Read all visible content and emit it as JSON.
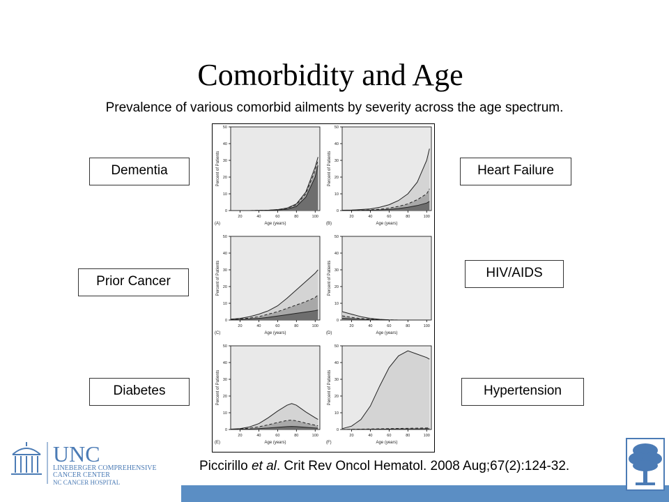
{
  "slide": {
    "title": "Comorbidity and Age",
    "subtitle": "Prevalence of various comorbid ailments by severity across the age spectrum.",
    "citation": {
      "author": "Piccirillo ",
      "etal": "et al",
      "rest": ". Crit Rev Oncol Hematol. 2008 Aug;67(2):124-32."
    }
  },
  "labels": {
    "dementia": "Dementia",
    "heart_failure": "Heart Failure",
    "prior_cancer": "Prior Cancer",
    "hiv_aids": "HIV/AIDS",
    "diabetes": "Diabetes",
    "hypertension": "Hypertension"
  },
  "logo": {
    "name": "UNC",
    "line1": "LINEBERGER COMPREHENSIVE",
    "line2": "CANCER CENTER",
    "line3": "NC CANCER HOSPITAL"
  },
  "colors": {
    "bottom_bar": "#5b8ec4",
    "unc_blue": "#4b7bb5",
    "fill_total": "#d4d4d4",
    "fill_moderate": "#a8a8a8",
    "fill_severe": "#6e6e6e",
    "panel_bg": "#e9e9e9"
  },
  "chart_data": [
    {
      "type": "area",
      "panel": "(A)",
      "xlabel": "Age (years)",
      "ylabel": "Percent of Patients",
      "xlim": [
        10,
        105
      ],
      "ylim": [
        0,
        50
      ],
      "x_ticks": [
        20,
        40,
        60,
        80,
        100
      ],
      "y_ticks": [
        0,
        10,
        20,
        30,
        40,
        50
      ],
      "x": [
        10,
        20,
        30,
        40,
        50,
        60,
        70,
        80,
        90,
        100,
        103
      ],
      "series": [
        {
          "values": [
            0,
            0,
            0,
            0.1,
            0.2,
            0.6,
            1.5,
            4,
            11,
            26,
            32
          ]
        },
        {
          "values": [
            0,
            0,
            0,
            0.1,
            0.2,
            0.5,
            1.3,
            3.5,
            10,
            24,
            30
          ]
        },
        {
          "values": [
            0,
            0,
            0,
            0,
            0.1,
            0.3,
            0.8,
            2.5,
            8,
            20,
            27
          ]
        }
      ]
    },
    {
      "type": "area",
      "panel": "(B)",
      "xlabel": "Age (years)",
      "ylabel": "Percent of Patients",
      "xlim": [
        10,
        105
      ],
      "ylim": [
        0,
        50
      ],
      "x_ticks": [
        20,
        40,
        60,
        80,
        100
      ],
      "y_ticks": [
        0,
        10,
        20,
        30,
        40,
        50
      ],
      "x": [
        10,
        20,
        30,
        40,
        50,
        60,
        70,
        80,
        90,
        100,
        103
      ],
      "series": [
        {
          "values": [
            0.2,
            0.3,
            0.6,
            1,
            2,
            3.5,
            6,
            10,
            17,
            30,
            37
          ]
        },
        {
          "values": [
            0,
            0.1,
            0.2,
            0.4,
            0.8,
            1.5,
            2.5,
            4,
            6.5,
            10,
            13
          ]
        },
        {
          "values": [
            0,
            0,
            0.1,
            0.2,
            0.4,
            0.7,
            1.2,
            2,
            3,
            4.5,
            5.5
          ]
        }
      ]
    },
    {
      "type": "area",
      "panel": "(C)",
      "xlabel": "Age (years)",
      "ylabel": "Percent of Patients",
      "xlim": [
        10,
        105
      ],
      "ylim": [
        0,
        50
      ],
      "x_ticks": [
        20,
        40,
        60,
        80,
        100
      ],
      "y_ticks": [
        0,
        10,
        20,
        30,
        40,
        50
      ],
      "x": [
        10,
        20,
        30,
        40,
        50,
        60,
        70,
        80,
        90,
        100,
        103
      ],
      "series": [
        {
          "values": [
            0.5,
            1,
            2,
            3.5,
            5.5,
            8.5,
            13,
            18,
            23,
            28,
            30
          ]
        },
        {
          "values": [
            0.3,
            0.6,
            1.2,
            2,
            3.5,
            5,
            7,
            9,
            11,
            13.5,
            15
          ]
        },
        {
          "values": [
            0.1,
            0.3,
            0.6,
            1,
            1.6,
            2.4,
            3.2,
            4,
            4.8,
            5.6,
            6
          ]
        }
      ]
    },
    {
      "type": "area",
      "panel": "(D)",
      "xlabel": "Age (years)",
      "ylabel": "Percent of Patients",
      "xlim": [
        10,
        105
      ],
      "ylim": [
        0,
        50
      ],
      "x_ticks": [
        20,
        40,
        60,
        80,
        100
      ],
      "y_ticks": [
        0,
        10,
        20,
        30,
        40,
        50
      ],
      "x": [
        10,
        20,
        30,
        40,
        50,
        60,
        70,
        80,
        90,
        100,
        103
      ],
      "series": [
        {
          "values": [
            5,
            3.5,
            2,
            1,
            0.4,
            0.1,
            0,
            0,
            0,
            0,
            0
          ]
        },
        {
          "values": [
            2.5,
            1.6,
            0.9,
            0.5,
            0.2,
            0.1,
            0,
            0,
            0,
            0,
            0
          ]
        },
        {
          "values": [
            1,
            0.7,
            0.4,
            0.2,
            0.1,
            0,
            0,
            0,
            0,
            0,
            0
          ]
        }
      ]
    },
    {
      "type": "area",
      "panel": "(E)",
      "xlabel": "Age (years)",
      "ylabel": "Percent of Patients",
      "xlim": [
        10,
        105
      ],
      "ylim": [
        0,
        50
      ],
      "x_ticks": [
        20,
        40,
        60,
        80,
        100
      ],
      "y_ticks": [
        0,
        10,
        20,
        30,
        40,
        50
      ],
      "x": [
        10,
        20,
        30,
        40,
        50,
        60,
        70,
        75,
        80,
        90,
        100,
        103
      ],
      "series": [
        {
          "values": [
            0.2,
            0.5,
            1.5,
            3.5,
            7,
            11,
            14.5,
            15.5,
            14.5,
            10.5,
            7,
            6
          ]
        },
        {
          "values": [
            0.1,
            0.3,
            0.8,
            1.6,
            2.8,
            4.2,
            5.4,
            5.6,
            5.2,
            3.8,
            2.6,
            2.2
          ]
        },
        {
          "values": [
            0,
            0.1,
            0.2,
            0.5,
            0.9,
            1.3,
            1.7,
            1.8,
            1.7,
            1.3,
            0.9,
            0.8
          ]
        }
      ]
    },
    {
      "type": "area",
      "panel": "(F)",
      "xlabel": "Age (years)",
      "ylabel": "Percent of Patients",
      "xlim": [
        10,
        105
      ],
      "ylim": [
        0,
        50
      ],
      "x_ticks": [
        20,
        40,
        60,
        80,
        100
      ],
      "y_ticks": [
        0,
        10,
        20,
        30,
        40,
        50
      ],
      "x": [
        10,
        20,
        30,
        40,
        50,
        60,
        70,
        80,
        90,
        100,
        103
      ],
      "series": [
        {
          "values": [
            0.5,
            2,
            6,
            14,
            26,
            37,
            44,
            47,
            45,
            43,
            42
          ]
        },
        {
          "values": [
            0,
            0.1,
            0.2,
            0.3,
            0.4,
            0.5,
            0.6,
            0.7,
            0.8,
            0.9,
            1
          ]
        },
        {
          "values": [
            0,
            0,
            0.1,
            0.1,
            0.2,
            0.2,
            0.3,
            0.3,
            0.3,
            0.4,
            0.4
          ]
        }
      ]
    }
  ]
}
